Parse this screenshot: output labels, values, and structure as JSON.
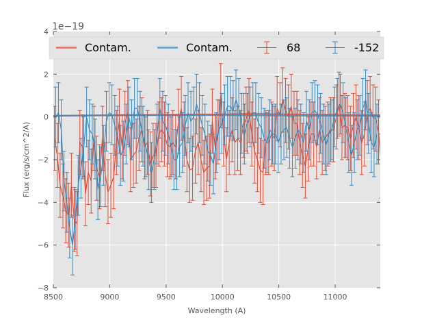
{
  "chart_data": {
    "type": "line",
    "title": "",
    "xlabel": "Wavelength (A)",
    "ylabel": "Flux (erg/s/cm^2/A)",
    "offset_label": "1e−19",
    "xlim": [
      8500,
      11400
    ],
    "ylim": [
      -8,
      4
    ],
    "y_scale": 1e-19,
    "xticks": [
      8500,
      9000,
      9500,
      10000,
      10500,
      11000
    ],
    "xtick_labels": [
      "8500",
      "9000",
      "9500",
      "10000",
      "10500",
      "11000"
    ],
    "yticks": [
      -8,
      -6,
      -4,
      -2,
      0,
      2,
      4
    ],
    "ytick_labels": [
      "−8",
      "−6",
      "−4",
      "−2",
      "0",
      "2",
      "4"
    ],
    "grid": true,
    "legend_position": "top",
    "colors": {
      "red": "#e24a33",
      "blue": "#348abd",
      "background": "#e5e5e5",
      "grid": "#ffffff"
    },
    "series": [
      {
        "name": "Contam.",
        "kind": "line",
        "color": "#e24a33",
        "x": [
          8500,
          9000,
          9500,
          10000,
          10300,
          10500,
          11000,
          11400
        ],
        "values": [
          0.05,
          0.08,
          0.1,
          0.12,
          0.15,
          0.12,
          0.1,
          0.08
        ]
      },
      {
        "name": "Contam.",
        "kind": "line",
        "color": "#348abd",
        "x": [
          8500,
          9000,
          9500,
          10000,
          10500,
          11000,
          11400
        ],
        "values": [
          0.05,
          0.07,
          0.08,
          0.08,
          0.06,
          0.05,
          0.05
        ]
      },
      {
        "name": "68",
        "kind": "errorbar",
        "color": "#e24a33",
        "x_start": 8510,
        "x_step": 25,
        "values": [
          -1.0,
          -1.8,
          -3.2,
          -3.7,
          -4.4,
          -4.6,
          -3.2,
          -4.8,
          -5.0,
          -1.2,
          -1.4,
          -3.6,
          -2.6,
          -3.0,
          -1.0,
          -2.4,
          -2.8,
          -1.0,
          -2.7,
          -3.5,
          -3.2,
          -2.8,
          -1.2,
          -0.2,
          -1.4,
          -0.3,
          0.2,
          -2.0,
          -1.8,
          -1.6,
          -1.0,
          -0.6,
          -1.4,
          -1.2,
          -2.2,
          -1.8,
          -1.8,
          -0.8,
          -0.6,
          -0.8,
          -1.3,
          -1.4,
          -1.2,
          -1.4,
          -0.2,
          0.4,
          -0.8,
          -2.0,
          -2.5,
          -2.4,
          -1.6,
          -1.2,
          -2.0,
          -2.6,
          -2.4,
          -2.3,
          -0.2,
          -1.4,
          -0.7,
          1.0,
          -0.8,
          -2.0,
          -1.2,
          -0.6,
          -1.2,
          -1.0,
          -1.2,
          -0.4,
          -0.1,
          0.3,
          -0.8,
          -1.6,
          -2.0,
          -2.5,
          -2.6,
          -1.2,
          -1.2,
          -0.8,
          -1.0,
          0.4,
          0.1,
          0.8,
          0.3,
          0.0,
          0.5,
          -0.3,
          -0.3,
          -1.2,
          -1.8,
          -2.3,
          -1.5,
          -0.8,
          -0.8,
          -1.4,
          -0.6,
          -1.2,
          -1.0,
          -0.8,
          -0.6,
          -0.6,
          0.0,
          0.6,
          -0.5,
          -0.4,
          -0.5,
          -1.0,
          -0.4,
          0.0,
          -0.5,
          -1.2,
          -0.8,
          0.2,
          0.4,
          0.0,
          -0.1,
          -0.7,
          -2.3
        ],
        "err": 1.5
      },
      {
        "name": "-152",
        "kind": "errorbar",
        "color": "#348abd",
        "x_start": 8520,
        "x_step": 25,
        "values": [
          0.0,
          0.2,
          -0.6,
          -3.0,
          -4.0,
          -5.2,
          -6.0,
          -4.8,
          -3.2,
          -2.4,
          -1.4,
          0.0,
          -0.6,
          -0.8,
          -1.5,
          -3.4,
          -2.8,
          -1.8,
          -0.2,
          0.2,
          0.1,
          -0.4,
          -0.9,
          -1.8,
          -1.6,
          -0.8,
          0.0,
          -0.6,
          0.4,
          0.4,
          -0.2,
          -0.9,
          -1.4,
          -2.0,
          -2.6,
          -2.0,
          -0.8,
          0.4,
          -0.2,
          -0.4,
          -0.8,
          -1.4,
          -2.0,
          -2.0,
          -1.4,
          -1.2,
          -0.4,
          0.2,
          -0.2,
          0.0,
          0.6,
          0.2,
          -0.4,
          -0.8,
          -1.6,
          -1.8,
          -2.2,
          -1.2,
          -0.6,
          -0.3,
          0.1,
          0.5,
          0.5,
          0.3,
          0.8,
          0.4,
          -0.3,
          -0.8,
          -0.3,
          0.0,
          0.2,
          0.2,
          -0.3,
          -0.5,
          -1.0,
          -1.2,
          -0.6,
          -0.8,
          -0.8,
          -1.2,
          -0.8,
          -0.6,
          -0.5,
          -1.0,
          -1.4,
          -1.0,
          -0.6,
          -0.8,
          -1.2,
          -0.2,
          -0.6,
          0.2,
          0.3,
          0.1,
          -0.3,
          -0.8,
          -1.3,
          -0.8,
          -0.6,
          0.0,
          0.4,
          0.6,
          0.2,
          -0.5,
          -1.2,
          -1.8,
          -1.2,
          -0.6,
          -0.4,
          0.4,
          0.8,
          -0.3,
          -1.2,
          -1.4,
          -0.8
        ],
        "err": 1.4
      }
    ]
  }
}
